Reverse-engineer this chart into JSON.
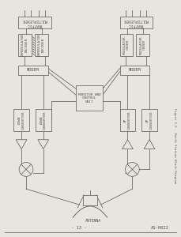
{
  "bg_color": "#e8e4de",
  "line_color": "#555555",
  "box_color": "#e8e4de",
  "box_edge": "#555555",
  "title_text": "Figure 1-5 - Earth Station Block Diagram",
  "page_number": "- 13 -",
  "doc_number": "AS-0022",
  "left_mux_label": "TRAFFIC\nMULTIPLEXER",
  "right_mux_label": "TRAFFIC\nMULTIPLEXER",
  "left_demod1": "DEMODULATOR\nDECODER",
  "left_demod2": "DEMODULATOR\nDECODER",
  "right_mod1": "MODULATOR\nCODER",
  "right_mod2": "MODULATOR\nCODER",
  "left_modem": "MODEM",
  "right_modem": "MODEM",
  "left_dc1": "DOWN\nCONVERTER",
  "left_dc2": "DOWN\nCONVERTER",
  "right_uc1": "UP\nCONVERTER",
  "right_uc2": "UP\nCONVERTER",
  "monitor": "MONITOR AND\nCONTROL\nUNIT",
  "antenna_label": "ANTENNA"
}
